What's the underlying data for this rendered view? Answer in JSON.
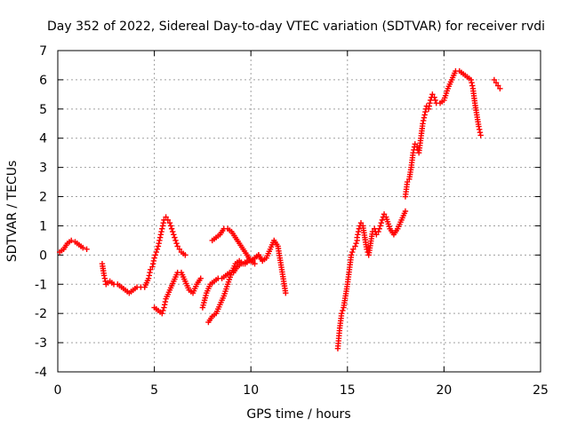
{
  "chart_data": {
    "type": "scatter",
    "title": "Day 352 of 2022, Sidereal Day-to-day VTEC variation (SDTVAR) for receiver rvdi",
    "xlabel": "GPS time / hours",
    "ylabel": "SDTVAR / TECUs",
    "xlim": [
      0,
      25
    ],
    "ylim": [
      -4,
      7
    ],
    "x_ticks": [
      "0",
      "5",
      "10",
      "15",
      "20",
      "25"
    ],
    "y_ticks": [
      "-4",
      "-3",
      "-2",
      "-1",
      "0",
      "1",
      "2",
      "3",
      "4",
      "5",
      "6",
      "7"
    ],
    "grid": true,
    "marker": "+",
    "color": "#ff0000",
    "series": [
      {
        "x": [
          0.1,
          0.3,
          0.5,
          0.7,
          0.9,
          1.1,
          1.3,
          1.5
        ],
        "y": [
          0.1,
          0.2,
          0.4,
          0.5,
          0.45,
          0.35,
          0.25,
          0.2
        ]
      },
      {
        "x": [
          2.3,
          2.4,
          2.5,
          2.7,
          2.9,
          3.1,
          3.3,
          3.5,
          3.7,
          3.9,
          4.1,
          4.3,
          4.5,
          4.7,
          4.8
        ],
        "y": [
          -0.3,
          -0.7,
          -1.0,
          -0.9,
          -1.0,
          -1.0,
          -1.1,
          -1.2,
          -1.3,
          -1.2,
          -1.1,
          -1.1,
          -1.1,
          -0.8,
          -0.5
        ]
      },
      {
        "x": [
          4.9,
          5.0,
          5.1,
          5.2,
          5.3,
          5.4,
          5.5,
          5.6,
          5.7,
          5.8,
          5.9,
          6.0,
          6.1,
          6.2,
          6.3,
          6.4,
          6.5,
          6.6
        ],
        "y": [
          -0.4,
          -0.1,
          0.1,
          0.3,
          0.6,
          0.9,
          1.2,
          1.3,
          1.2,
          1.1,
          0.9,
          0.7,
          0.5,
          0.3,
          0.2,
          0.1,
          0.05,
          0.0
        ]
      },
      {
        "x": [
          5.0,
          5.2,
          5.4,
          5.5,
          5.6,
          5.8,
          6.0,
          6.2,
          6.4,
          6.6,
          6.8,
          7.0,
          7.2,
          7.4
        ],
        "y": [
          -1.8,
          -1.9,
          -2.0,
          -1.8,
          -1.5,
          -1.2,
          -0.9,
          -0.6,
          -0.6,
          -0.9,
          -1.2,
          -1.3,
          -1.0,
          -0.8
        ]
      },
      {
        "x": [
          7.5,
          7.7,
          7.9,
          8.1,
          8.3,
          8.5,
          8.7,
          8.9,
          9.1,
          9.3,
          9.5,
          9.7,
          9.9,
          10.1
        ],
        "y": [
          -1.8,
          -1.3,
          -1.0,
          -0.9,
          -0.8,
          -0.8,
          -0.7,
          -0.6,
          -0.6,
          -0.4,
          -0.3,
          -0.3,
          -0.2,
          -0.2
        ]
      },
      {
        "x": [
          7.8,
          8.0,
          8.2,
          8.4,
          8.6,
          8.8,
          9.0,
          9.2,
          9.4,
          9.6,
          9.8,
          10.0,
          10.2,
          10.4,
          10.6
        ],
        "y": [
          -2.3,
          -2.1,
          -2.0,
          -1.7,
          -1.4,
          -1.0,
          -0.6,
          -0.3,
          -0.2,
          -0.3,
          -0.2,
          -0.2,
          -0.1,
          0.0,
          -0.2
        ]
      },
      {
        "x": [
          8.0,
          8.2,
          8.4,
          8.6,
          8.8,
          9.0,
          9.2,
          9.4,
          9.6,
          9.8,
          10.0,
          10.2
        ],
        "y": [
          0.5,
          0.6,
          0.7,
          0.9,
          0.9,
          0.8,
          0.6,
          0.4,
          0.2,
          0.0,
          -0.2,
          -0.3
        ]
      },
      {
        "x": [
          10.2,
          10.4,
          10.6,
          10.8,
          11.0,
          11.2,
          11.4,
          11.6,
          11.8
        ],
        "y": [
          -0.1,
          0.0,
          -0.2,
          -0.1,
          0.2,
          0.5,
          0.3,
          -0.5,
          -1.3
        ]
      },
      {
        "x": [
          14.5,
          14.6,
          14.7,
          14.8,
          14.9,
          15.0,
          15.1,
          15.2,
          15.3,
          15.4,
          15.5
        ],
        "y": [
          -3.2,
          -2.5,
          -2.0,
          -1.8,
          -1.4,
          -1.0,
          -0.5,
          0.0,
          0.2,
          0.3,
          0.5
        ]
      },
      {
        "x": [
          15.5,
          15.6,
          15.7,
          15.8,
          15.9,
          16.0,
          16.1,
          16.2,
          16.3,
          16.4,
          16.5,
          16.6,
          16.7,
          16.8,
          16.9,
          17.0,
          17.2,
          17.4,
          17.6,
          17.8,
          18.0
        ],
        "y": [
          0.6,
          0.9,
          1.1,
          1.0,
          0.6,
          0.2,
          0.0,
          0.4,
          0.8,
          0.9,
          0.7,
          0.8,
          1.0,
          1.2,
          1.4,
          1.3,
          0.9,
          0.7,
          0.9,
          1.2,
          1.5
        ]
      },
      {
        "x": [
          18.0,
          18.1,
          18.2,
          18.3,
          18.4,
          18.5,
          18.6,
          18.7,
          18.8,
          18.9,
          19.0,
          19.1,
          19.2,
          19.3,
          19.4,
          19.5,
          19.6,
          19.8,
          20.0,
          20.2,
          20.4,
          20.6,
          20.8,
          21.0,
          21.2,
          21.4,
          21.5,
          21.6,
          21.7,
          21.8,
          21.9
        ],
        "y": [
          2.0,
          2.5,
          2.6,
          3.0,
          3.5,
          3.8,
          3.7,
          3.5,
          4.0,
          4.5,
          4.8,
          5.1,
          5.0,
          5.3,
          5.5,
          5.4,
          5.2,
          5.2,
          5.3,
          5.7,
          6.0,
          6.3,
          6.3,
          6.2,
          6.1,
          6.0,
          5.7,
          5.2,
          4.8,
          4.4,
          4.1
        ]
      },
      {
        "x": [
          22.6,
          22.7,
          22.8,
          22.9
        ],
        "y": [
          6.0,
          5.9,
          5.8,
          5.7
        ]
      }
    ]
  }
}
